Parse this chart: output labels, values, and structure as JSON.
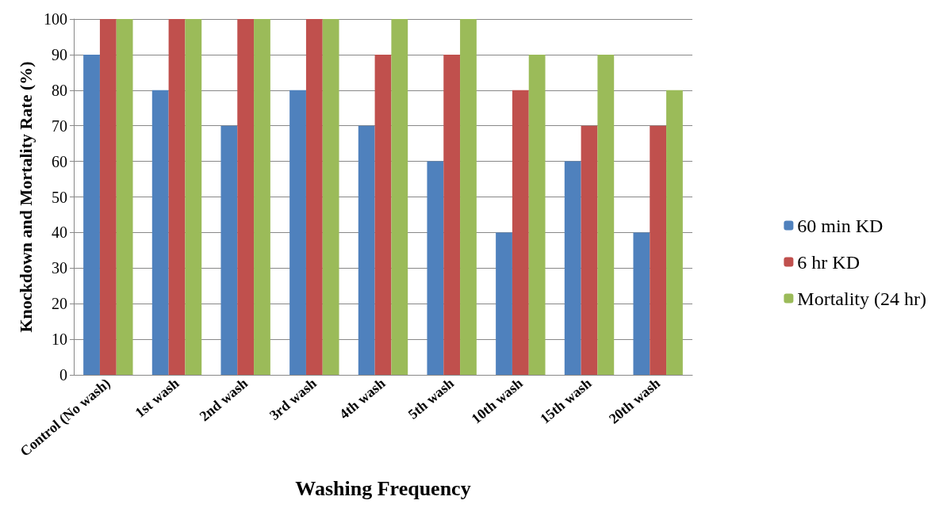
{
  "chart_data": {
    "type": "bar",
    "xlabel": "Washing Frequency",
    "ylabel": "Knockdown and Mortality Rate (%)",
    "categories": [
      "Control (No wash)",
      "1st wash",
      "2nd wash",
      "3rd wash",
      "4th wash",
      "5th wash",
      "10th wash",
      "15th wash",
      "20th wash"
    ],
    "series": [
      {
        "name": "60 min KD",
        "color": "#4f81bd",
        "values": [
          90,
          80,
          70,
          80,
          70,
          60,
          40,
          60,
          40
        ]
      },
      {
        "name": "6 hr KD",
        "color": "#c0504d",
        "values": [
          100,
          100,
          100,
          100,
          90,
          90,
          80,
          70,
          70
        ]
      },
      {
        "name": "Mortality (24 hr)",
        "color": "#9bbb59",
        "values": [
          100,
          100,
          100,
          100,
          100,
          100,
          90,
          90,
          80
        ]
      }
    ],
    "ylim": [
      0,
      100
    ],
    "yticks": [
      0,
      10,
      20,
      30,
      40,
      50,
      60,
      70,
      80,
      90,
      100
    ],
    "grid": "y",
    "legend": "right"
  }
}
